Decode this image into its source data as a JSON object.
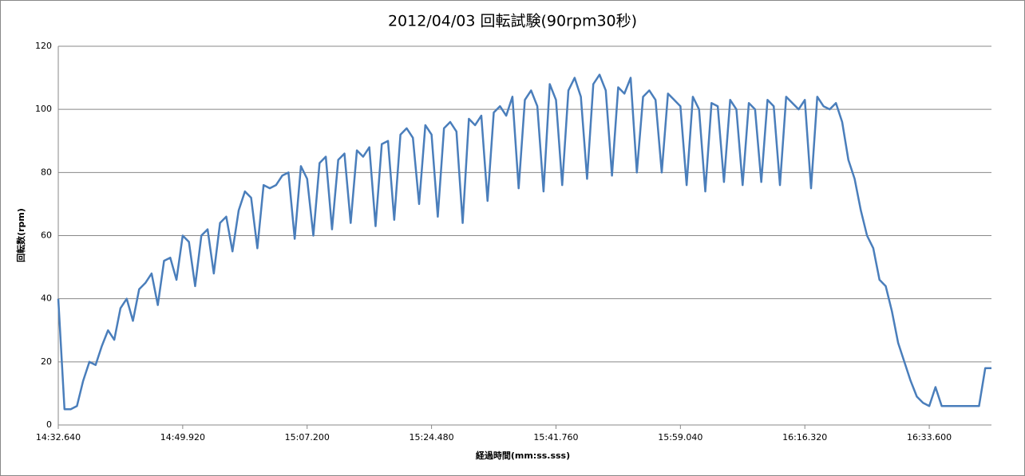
{
  "chart_data": {
    "type": "line",
    "title": "2012/04/03 回転試験(90rpm30秒)",
    "x_label": "経過時間(mm:ss.sss)",
    "y_label": "回転数(rpm)",
    "categories": [
      "14:32.640",
      null,
      null,
      null,
      null,
      null,
      null,
      null,
      null,
      null,
      null,
      null,
      null,
      null,
      null,
      null,
      null,
      null,
      null,
      null,
      "14:49.920",
      null,
      null,
      null,
      null,
      null,
      null,
      null,
      null,
      null,
      null,
      null,
      null,
      null,
      null,
      null,
      null,
      null,
      null,
      null,
      "15:07.200",
      null,
      null,
      null,
      null,
      null,
      null,
      null,
      null,
      null,
      null,
      null,
      null,
      null,
      null,
      null,
      null,
      null,
      null,
      null,
      "15:24.480",
      null,
      null,
      null,
      null,
      null,
      null,
      null,
      null,
      null,
      null,
      null,
      null,
      null,
      null,
      null,
      null,
      null,
      null,
      null,
      "15:41.760",
      null,
      null,
      null,
      null,
      null,
      null,
      null,
      null,
      null,
      null,
      null,
      null,
      null,
      null,
      null,
      null,
      null,
      null,
      null,
      "15:59.040",
      null,
      null,
      null,
      null,
      null,
      null,
      null,
      null,
      null,
      null,
      null,
      null,
      null,
      null,
      null,
      null,
      null,
      null,
      null,
      "16:16.320",
      null,
      null,
      null,
      null,
      null,
      null,
      null,
      null,
      null,
      null,
      null,
      null,
      null,
      null,
      null,
      null,
      null,
      null,
      null,
      "16:33.600",
      null,
      null,
      null,
      null,
      null,
      null,
      null,
      null,
      null,
      null
    ],
    "series": [
      {
        "name": "回転数",
        "color": "#4a7ebb",
        "values": [
          40,
          5,
          5,
          6,
          14,
          20,
          19,
          25,
          30,
          27,
          37,
          40,
          33,
          43,
          45,
          48,
          38,
          52,
          53,
          46,
          60,
          58,
          44,
          60,
          62,
          48,
          64,
          66,
          55,
          68,
          74,
          72,
          56,
          76,
          75,
          76,
          79,
          80,
          59,
          82,
          78,
          60,
          83,
          85,
          62,
          84,
          86,
          64,
          87,
          85,
          88,
          63,
          89,
          90,
          65,
          92,
          94,
          91,
          70,
          95,
          92,
          66,
          94,
          96,
          93,
          64,
          97,
          95,
          98,
          71,
          99,
          101,
          98,
          104,
          75,
          103,
          106,
          101,
          74,
          108,
          103,
          76,
          106,
          110,
          104,
          78,
          108,
          111,
          106,
          79,
          107,
          105,
          110,
          80,
          104,
          106,
          103,
          80,
          105,
          103,
          101,
          76,
          104,
          100,
          74,
          102,
          101,
          77,
          103,
          100,
          76,
          102,
          100,
          77,
          103,
          101,
          76,
          104,
          102,
          100,
          103,
          75,
          104,
          101,
          100,
          102,
          96,
          84,
          78,
          68,
          60,
          56,
          46,
          44,
          36,
          26,
          20,
          14,
          9,
          7,
          6,
          12,
          6,
          6,
          6,
          6,
          6,
          6,
          6,
          18,
          18
        ]
      }
    ],
    "ylim": [
      0,
      120
    ],
    "yticks": [
      0,
      20,
      40,
      60,
      80,
      100,
      120
    ],
    "grid": true
  }
}
